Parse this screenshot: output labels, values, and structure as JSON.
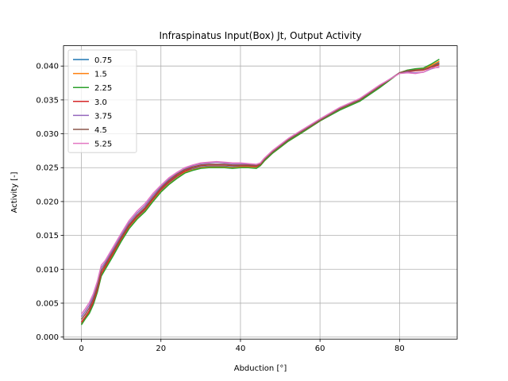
{
  "chart_data": {
    "type": "line",
    "title": "Infraspinatus Input(Box) Jt, Output Activity",
    "xlabel": "Abduction [°]",
    "ylabel": "Activity [-]",
    "xlim": [
      -4.5,
      94.5
    ],
    "ylim": [
      -0.0003,
      0.043
    ],
    "xticks": [
      0,
      20,
      40,
      60,
      80
    ],
    "yticks": [
      0.0,
      0.005,
      0.01,
      0.015,
      0.02,
      0.025,
      0.03,
      0.035,
      0.04
    ],
    "ytick_labels": [
      "0.000",
      "0.005",
      "0.010",
      "0.015",
      "0.020",
      "0.025",
      "0.030",
      "0.035",
      "0.040"
    ],
    "grid": true,
    "legend_position": "top-left",
    "x": [
      0,
      1,
      2,
      3,
      4,
      5,
      6,
      8,
      10,
      12,
      14,
      16,
      18,
      20,
      22,
      24,
      26,
      28,
      30,
      32,
      34,
      36,
      38,
      40,
      42,
      44,
      45,
      46,
      48,
      50,
      52,
      55,
      60,
      65,
      70,
      72,
      75,
      80,
      82,
      84,
      86,
      88,
      90
    ],
    "series": [
      {
        "name": "0.75",
        "color": "#1f77b4",
        "values": [
          0.002,
          0.0029,
          0.0037,
          0.005,
          0.0068,
          0.0092,
          0.0102,
          0.0122,
          0.0143,
          0.0162,
          0.0176,
          0.0187,
          0.0202,
          0.0216,
          0.0227,
          0.0236,
          0.0244,
          0.0248,
          0.0251,
          0.0252,
          0.0252,
          0.0252,
          0.0251,
          0.0252,
          0.0252,
          0.0251,
          0.0254,
          0.0261,
          0.0272,
          0.0281,
          0.029,
          0.0301,
          0.032,
          0.0337,
          0.035,
          0.0358,
          0.037,
          0.039,
          0.0393,
          0.0394,
          0.0395,
          0.04,
          0.0405
        ]
      },
      {
        "name": "1.5",
        "color": "#ff7f0e",
        "values": [
          0.0019,
          0.0028,
          0.0036,
          0.0049,
          0.0067,
          0.0091,
          0.0101,
          0.0121,
          0.0142,
          0.0161,
          0.0175,
          0.0186,
          0.0201,
          0.0215,
          0.0226,
          0.0235,
          0.0243,
          0.0247,
          0.025,
          0.0251,
          0.0251,
          0.0251,
          0.025,
          0.0251,
          0.0251,
          0.025,
          0.0253,
          0.026,
          0.0271,
          0.028,
          0.0289,
          0.03,
          0.0319,
          0.0336,
          0.0349,
          0.0357,
          0.0369,
          0.039,
          0.0394,
          0.0395,
          0.0396,
          0.0401,
          0.0407
        ]
      },
      {
        "name": "2.25",
        "color": "#2ca02c",
        "values": [
          0.0018,
          0.0027,
          0.0035,
          0.0048,
          0.0066,
          0.009,
          0.01,
          0.012,
          0.0141,
          0.016,
          0.0174,
          0.0185,
          0.02,
          0.0214,
          0.0225,
          0.0234,
          0.0242,
          0.0246,
          0.0249,
          0.025,
          0.025,
          0.025,
          0.0249,
          0.025,
          0.025,
          0.0249,
          0.0253,
          0.026,
          0.0271,
          0.028,
          0.0289,
          0.03,
          0.0319,
          0.0335,
          0.0348,
          0.0356,
          0.0368,
          0.039,
          0.0394,
          0.0396,
          0.0397,
          0.0403,
          0.041
        ]
      },
      {
        "name": "3.0",
        "color": "#d62728",
        "values": [
          0.0022,
          0.003,
          0.0039,
          0.0052,
          0.007,
          0.0094,
          0.0104,
          0.0124,
          0.0145,
          0.0164,
          0.0178,
          0.0189,
          0.0204,
          0.0218,
          0.0229,
          0.0238,
          0.0245,
          0.025,
          0.0253,
          0.0254,
          0.0254,
          0.0254,
          0.0253,
          0.0253,
          0.0253,
          0.0252,
          0.0255,
          0.0262,
          0.0273,
          0.0282,
          0.0291,
          0.0302,
          0.032,
          0.0337,
          0.035,
          0.0358,
          0.037,
          0.039,
          0.0392,
          0.0393,
          0.0394,
          0.0398,
          0.0402
        ]
      },
      {
        "name": "3.75",
        "color": "#9467bd",
        "values": [
          0.003,
          0.0038,
          0.0047,
          0.006,
          0.0078,
          0.0102,
          0.011,
          0.013,
          0.015,
          0.0169,
          0.0183,
          0.0194,
          0.0209,
          0.0222,
          0.0233,
          0.0241,
          0.0248,
          0.0253,
          0.0256,
          0.0257,
          0.0258,
          0.0257,
          0.0256,
          0.0256,
          0.0255,
          0.0254,
          0.0256,
          0.0263,
          0.0274,
          0.0283,
          0.0292,
          0.0303,
          0.0321,
          0.0338,
          0.0351,
          0.0359,
          0.0371,
          0.039,
          0.0391,
          0.039,
          0.0391,
          0.0396,
          0.0399
        ]
      },
      {
        "name": "4.5",
        "color": "#8c564b",
        "values": [
          0.0026,
          0.0034,
          0.0043,
          0.0056,
          0.0074,
          0.0098,
          0.0107,
          0.0127,
          0.0147,
          0.0166,
          0.018,
          0.0191,
          0.0206,
          0.022,
          0.0231,
          0.024,
          0.0247,
          0.0251,
          0.0254,
          0.0255,
          0.0255,
          0.0255,
          0.0254,
          0.0254,
          0.0254,
          0.0253,
          0.0256,
          0.0262,
          0.0273,
          0.0282,
          0.0291,
          0.0302,
          0.032,
          0.0337,
          0.035,
          0.0358,
          0.037,
          0.039,
          0.0393,
          0.0394,
          0.0395,
          0.0399,
          0.0404
        ]
      },
      {
        "name": "5.25",
        "color": "#e377c2",
        "values": [
          0.0034,
          0.0042,
          0.0051,
          0.0064,
          0.0082,
          0.0106,
          0.0113,
          0.0133,
          0.0153,
          0.0172,
          0.0186,
          0.0197,
          0.0212,
          0.0224,
          0.0235,
          0.0243,
          0.025,
          0.0254,
          0.0257,
          0.0258,
          0.0259,
          0.0258,
          0.0257,
          0.0257,
          0.0256,
          0.0255,
          0.0257,
          0.0264,
          0.0275,
          0.0284,
          0.0293,
          0.0304,
          0.0322,
          0.0339,
          0.0352,
          0.036,
          0.0372,
          0.0389,
          0.039,
          0.0389,
          0.0391,
          0.0397,
          0.0398
        ]
      }
    ]
  }
}
